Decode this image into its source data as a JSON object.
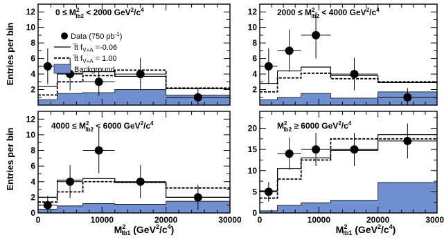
{
  "figure": {
    "ylabel": "Entries per bin",
    "xlabel_main": "M",
    "xlabel_sup": "2",
    "xlabel_sub": "lb1",
    "xlabel_units": " (GeV",
    "xlabel_units_sup": "2",
    "xlabel_units_end": "/c",
    "xlabel_units_end_sup": "4",
    "xlabel_close": ")"
  },
  "legend": {
    "data": "Data (750 pb",
    "data_sup": "-1",
    "data_close": ")",
    "solid": "t̅t f",
    "solid_sub": "V+A",
    "solid_val": " =-0.06",
    "dashed": "t̅t f",
    "dashed_sub": "V+A",
    "dashed_val": " = 1.00",
    "background": "Background"
  },
  "colors": {
    "background_fill": "#6f8fce",
    "line": "#000000"
  },
  "chart_data": [
    {
      "type": "histogram",
      "panel": "top-left",
      "title_parts": [
        "0 ≤ M",
        "2",
        "lb2",
        " < 2000 GeV",
        "2",
        "/c",
        "4"
      ],
      "bin_edges": [
        0,
        3000,
        7000,
        12000,
        20000,
        30000
      ],
      "series": [
        {
          "name": "Background",
          "values": [
            0.7,
            1.5,
            1.6,
            2.0,
            1.3
          ]
        },
        {
          "name": "solid",
          "values": [
            2.4,
            4.1,
            4.3,
            3.7,
            2.1
          ]
        },
        {
          "name": "dashed",
          "values": [
            1.3,
            3.0,
            3.8,
            4.5,
            2.2
          ]
        }
      ],
      "data_points": [
        {
          "x": 1500,
          "y": 5,
          "xerr": 1500,
          "yerr": 2.3
        },
        {
          "x": 5000,
          "y": 4,
          "xerr": 2000,
          "yerr": 2.1
        },
        {
          "x": 9500,
          "y": 3,
          "xerr": 2500,
          "yerr": 1.8
        },
        {
          "x": 16000,
          "y": 4,
          "xerr": 4000,
          "yerr": 2.1
        },
        {
          "x": 25000,
          "y": 1,
          "xerr": 5000,
          "yerr": 1.2
        }
      ],
      "ylim": [
        0,
        13
      ],
      "yticks": [
        2,
        4,
        6,
        8,
        10,
        12
      ],
      "xlim": [
        0,
        30000
      ],
      "xticks": []
    },
    {
      "type": "histogram",
      "panel": "top-right",
      "title_parts": [
        "2000 ≤ M",
        "2",
        "lb2",
        " < 4000 GeV",
        "2",
        "/c",
        "4"
      ],
      "bin_edges": [
        0,
        3000,
        7000,
        12000,
        20000,
        30000
      ],
      "series": [
        {
          "name": "Background",
          "values": [
            0.7,
            1.0,
            1.5,
            0.9,
            1.7
          ]
        },
        {
          "name": "solid",
          "values": [
            2.8,
            4.4,
            4.9,
            3.8,
            2.9
          ]
        },
        {
          "name": "dashed",
          "values": [
            1.7,
            3.5,
            4.1,
            3.4,
            3.0
          ]
        }
      ],
      "data_points": [
        {
          "x": 1500,
          "y": 5,
          "xerr": 1500,
          "yerr": 2.3
        },
        {
          "x": 5000,
          "y": 7,
          "xerr": 2000,
          "yerr": 2.7
        },
        {
          "x": 9500,
          "y": 9,
          "xerr": 2500,
          "yerr": 3.0
        },
        {
          "x": 16000,
          "y": 4,
          "xerr": 4000,
          "yerr": 2.1
        },
        {
          "x": 25000,
          "y": 1,
          "xerr": 5000,
          "yerr": 1.2
        }
      ],
      "ylim": [
        0,
        13
      ],
      "yticks": [
        2,
        4,
        6,
        8,
        10,
        12
      ],
      "xlim": [
        0,
        30000
      ],
      "xticks": []
    },
    {
      "type": "histogram",
      "panel": "bottom-left",
      "title_parts": [
        "4000 ≤ M",
        "2",
        "lb2",
        " < 6000 GeV",
        "2",
        "/c",
        "4"
      ],
      "bin_edges": [
        0,
        3000,
        7000,
        12000,
        20000,
        30000
      ],
      "series": [
        {
          "name": "Background",
          "values": [
            0.5,
            0.9,
            1.2,
            1.1,
            1.5
          ]
        },
        {
          "name": "solid",
          "values": [
            2.0,
            4.2,
            4.4,
            3.9,
            2.0
          ]
        },
        {
          "name": "dashed",
          "values": [
            1.4,
            2.7,
            4.0,
            3.9,
            3.2
          ]
        }
      ],
      "data_points": [
        {
          "x": 1500,
          "y": 1,
          "xerr": 1500,
          "yerr": 1.2
        },
        {
          "x": 5000,
          "y": 4,
          "xerr": 2000,
          "yerr": 2.1
        },
        {
          "x": 9500,
          "y": 8,
          "xerr": 2500,
          "yerr": 2.9
        },
        {
          "x": 16000,
          "y": 4,
          "xerr": 4000,
          "yerr": 2.1
        },
        {
          "x": 25000,
          "y": 2,
          "xerr": 5000,
          "yerr": 1.6
        }
      ],
      "ylim": [
        0,
        13
      ],
      "yticks": [
        0,
        2,
        4,
        6,
        8,
        10,
        12
      ],
      "xlim": [
        0,
        30000
      ],
      "xticks": [
        0,
        10000,
        20000,
        30000
      ]
    },
    {
      "type": "histogram",
      "panel": "bottom-right",
      "title_parts": [
        "M",
        "2",
        "lb2",
        " ≥ 6000 GeV",
        "2",
        "/c",
        "4"
      ],
      "bin_edges": [
        0,
        3000,
        7000,
        12000,
        20000,
        30000
      ],
      "series": [
        {
          "name": "Background",
          "values": [
            0.5,
            1.8,
            2.4,
            3.0,
            7.2
          ]
        },
        {
          "name": "solid",
          "values": [
            5.2,
            10.5,
            13.0,
            14.8,
            18.5
          ]
        },
        {
          "name": "dashed",
          "values": [
            3.5,
            8.0,
            12.5,
            17.5,
            17.5
          ]
        }
      ],
      "data_points": [
        {
          "x": 1500,
          "y": 5,
          "xerr": 1500,
          "yerr": 2.3
        },
        {
          "x": 5000,
          "y": 14,
          "xerr": 2000,
          "yerr": 3.8
        },
        {
          "x": 9500,
          "y": 15,
          "xerr": 2500,
          "yerr": 3.9
        },
        {
          "x": 16000,
          "y": 15,
          "xerr": 4000,
          "yerr": 3.9
        },
        {
          "x": 25000,
          "y": 17,
          "xerr": 5000,
          "yerr": 4.1
        }
      ],
      "ylim": [
        0,
        24
      ],
      "yticks": [
        0,
        5,
        10,
        15,
        20
      ],
      "xlim": [
        0,
        30000
      ],
      "xticks": [
        0,
        10000,
        20000,
        30000
      ]
    }
  ]
}
